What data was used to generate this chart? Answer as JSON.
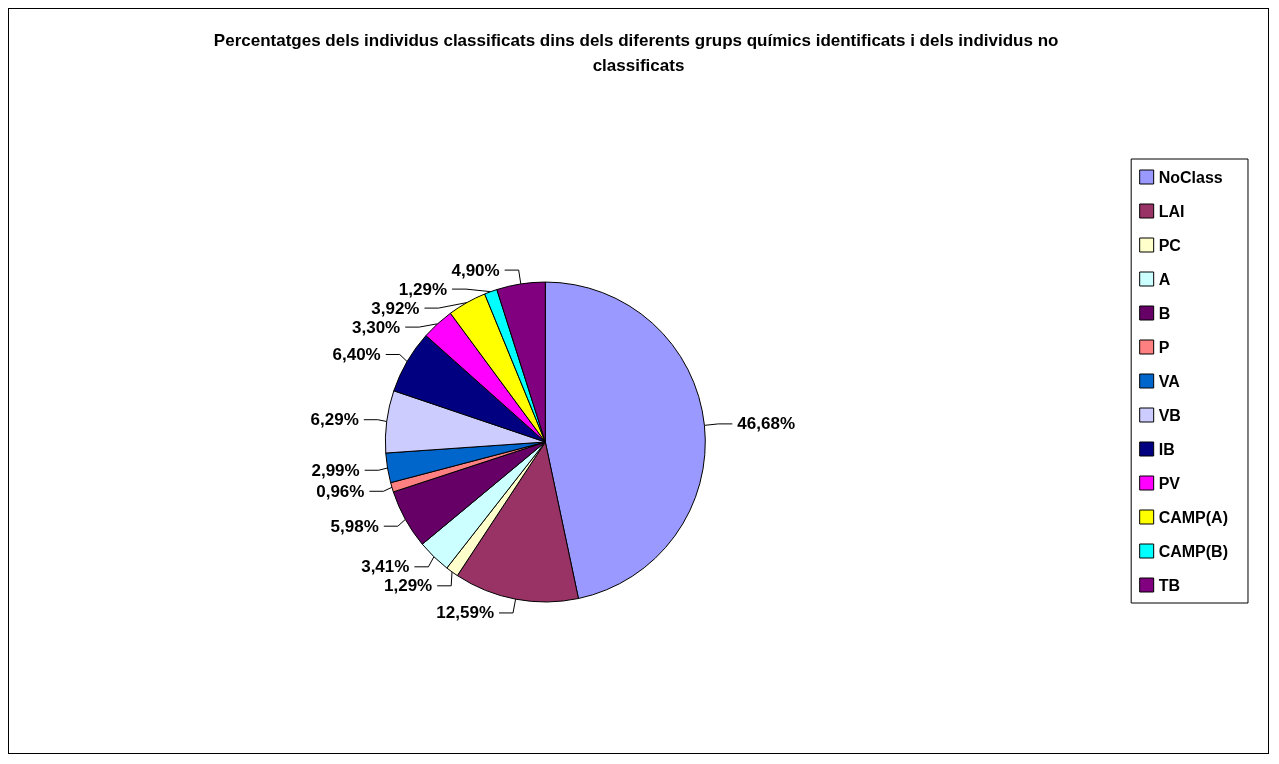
{
  "chart_data": {
    "type": "pie",
    "title": "Percentatges dels individus classificats dins dels diferents grups químics identificats i dels individus no classificats",
    "categories": [
      "NoClass",
      "LAI",
      "PC",
      "A",
      "B",
      "P",
      "VA",
      "VB",
      "IB",
      "PV",
      "CAMP(A)",
      "CAMP(B)",
      "TB"
    ],
    "values": [
      46.68,
      12.59,
      1.29,
      3.41,
      5.98,
      0.96,
      2.99,
      6.29,
      6.4,
      3.3,
      3.92,
      1.29,
      4.9
    ],
    "value_labels": [
      "46,68%",
      "12,59%",
      "1,29%",
      "3,41%",
      "5,98%",
      "0,96%",
      "2,99%",
      "6,29%",
      "6,40%",
      "3,30%",
      "3,92%",
      "1,29%",
      "4,90%"
    ],
    "colors": [
      "#9999ff",
      "#993366",
      "#ffffcc",
      "#ccffff",
      "#660066",
      "#ff8080",
      "#0066cc",
      "#ccccff",
      "#000080",
      "#ff00ff",
      "#ffff00",
      "#00ffff",
      "#800080"
    ],
    "legend": "right"
  }
}
